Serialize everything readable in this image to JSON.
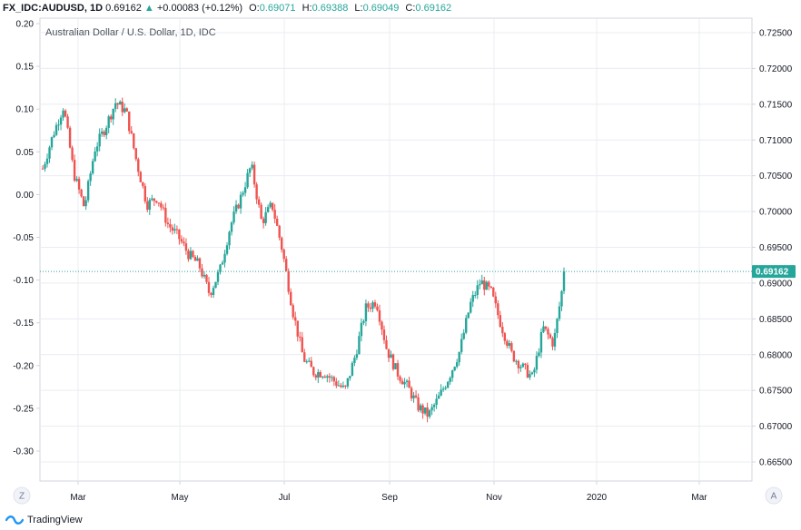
{
  "header": {
    "symbol": "FX_IDC:AUDUSD, 1D",
    "last": "0.69162",
    "change": "+0.00083 (+0.12%)",
    "o_label": "O:",
    "o_value": "0.69071",
    "h_label": "H:",
    "h_value": "0.69388",
    "l_label": "L:",
    "l_value": "0.69049",
    "c_label": "C:",
    "c_value": "0.69162"
  },
  "chart_title": "Australian Dollar / U.S. Dollar, 1D, IDC",
  "footer": {
    "brand": "TradingView"
  },
  "buttons": {
    "left_scale": "Z",
    "right_scale": "A"
  },
  "colors": {
    "up": "#26a69a",
    "down": "#ef5350",
    "grid": "#e9ecf2",
    "price_line": "#26a69a",
    "axis": "#787b86"
  },
  "chart_data": {
    "type": "candlestick",
    "title": "Australian Dollar / U.S. Dollar, 1D, IDC",
    "last_price_label": "0.69162",
    "x_ticks": [
      "Mar",
      "May",
      "Jul",
      "Sep",
      "Nov",
      "2020",
      "Mar"
    ],
    "left_axis": {
      "ticks": [
        "0.20",
        "0.15",
        "0.10",
        "0.05",
        "0.00",
        "-0.05",
        "-0.10",
        "-0.15",
        "-0.20",
        "-0.25",
        "-0.30"
      ],
      "range": [
        -0.3,
        0.2
      ]
    },
    "right_axis": {
      "ticks": [
        "0.72500",
        "0.72000",
        "0.71500",
        "0.71000",
        "0.70500",
        "0.70000",
        "0.69500",
        "0.69000",
        "0.68500",
        "0.68000",
        "0.67500",
        "0.67000",
        "0.66500"
      ],
      "range": [
        0.665,
        0.725
      ]
    },
    "price_anchors": [
      [
        0.7055,
        0.7065
      ],
      [
        0.709,
        0.7125
      ],
      [
        0.714,
        0.7155
      ],
      [
        0.704,
        0.7065
      ],
      [
        0.6995,
        0.7015
      ],
      [
        0.707,
        0.7105
      ],
      [
        0.7095,
        0.714
      ],
      [
        0.714,
        0.7165
      ],
      [
        0.713,
        0.715
      ],
      [
        0.706,
        0.708
      ],
      [
        0.6995,
        0.7025
      ],
      [
        0.701,
        0.703
      ],
      [
        0.6975,
        0.699
      ],
      [
        0.696,
        0.697
      ],
      [
        0.693,
        0.695
      ],
      [
        0.6915,
        0.6935
      ],
      [
        0.6875,
        0.6895
      ],
      [
        0.69,
        0.6935
      ],
      [
        0.697,
        0.699
      ],
      [
        0.7,
        0.704
      ],
      [
        0.7055,
        0.7075
      ],
      [
        0.6975,
        0.6995
      ],
      [
        0.7,
        0.702
      ],
      [
        0.6935,
        0.6955
      ],
      [
        0.685,
        0.687
      ],
      [
        0.6785,
        0.6805
      ],
      [
        0.677,
        0.678
      ],
      [
        0.677,
        0.678
      ],
      [
        0.6755,
        0.677
      ],
      [
        0.6745,
        0.6755
      ],
      [
        0.6785,
        0.6815
      ],
      [
        0.6855,
        0.6875
      ],
      [
        0.687,
        0.688
      ],
      [
        0.68,
        0.6815
      ],
      [
        0.677,
        0.678
      ],
      [
        0.675,
        0.676
      ],
      [
        0.6725,
        0.673
      ],
      [
        0.671,
        0.672
      ],
      [
        0.673,
        0.675
      ],
      [
        0.676,
        0.678
      ],
      [
        0.6795,
        0.6815
      ],
      [
        0.686,
        0.688
      ],
      [
        0.6895,
        0.691
      ],
      [
        0.688,
        0.6895
      ],
      [
        0.683,
        0.685
      ],
      [
        0.679,
        0.681
      ],
      [
        0.6775,
        0.679
      ],
      [
        0.6765,
        0.677
      ],
      [
        0.683,
        0.6845
      ],
      [
        0.6805,
        0.6825
      ],
      [
        0.69,
        0.6916
      ]
    ]
  }
}
